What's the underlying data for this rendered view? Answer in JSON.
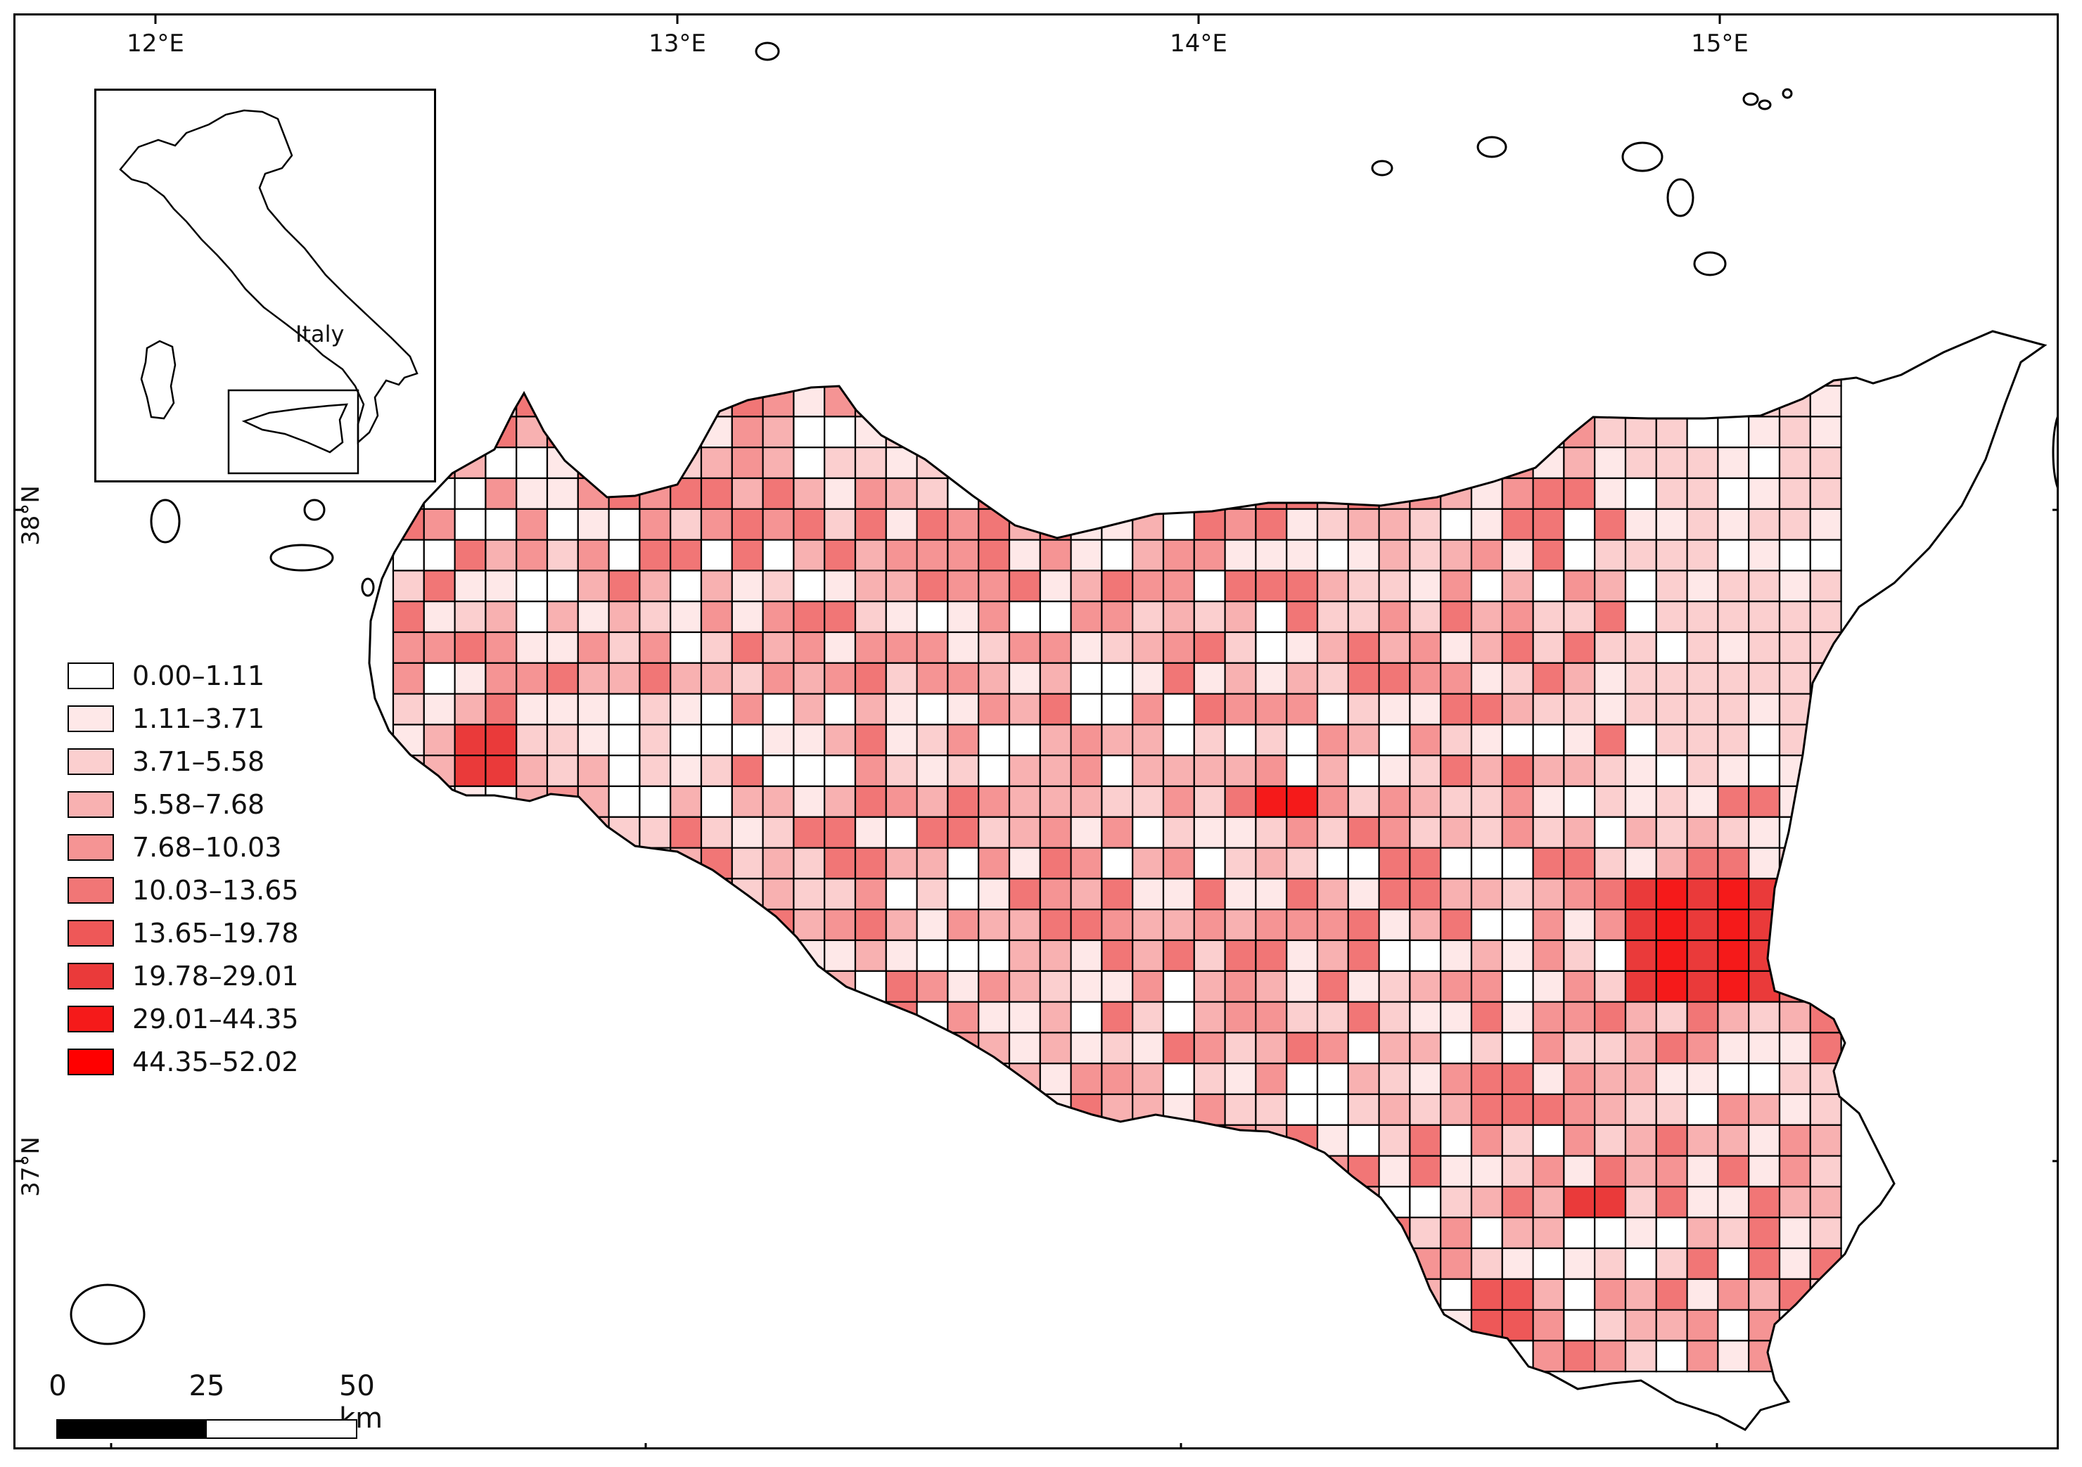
{
  "map": {
    "grid_columns": 47,
    "grid_rows": 34
  },
  "axes": {
    "longitude_labels": [
      "12°E",
      "13°E",
      "14°E",
      "15°E"
    ],
    "latitude_labels": [
      "38°N",
      "37°N"
    ]
  },
  "inset": {
    "label": "Italy"
  },
  "legend": {
    "classes": [
      {
        "label": "0.00–1.11",
        "color": "#ffffff"
      },
      {
        "label": "1.11–3.71",
        "color": "#fee8e8"
      },
      {
        "label": "3.71–5.58",
        "color": "#fbcfcf"
      },
      {
        "label": "5.58–7.68",
        "color": "#f8b1b1"
      },
      {
        "label": "7.68–10.03",
        "color": "#f59494"
      },
      {
        "label": "10.03–13.65",
        "color": "#f17676"
      },
      {
        "label": "13.65–19.78",
        "color": "#ee5858"
      },
      {
        "label": "19.78–29.01",
        "color": "#ea3a3a"
      },
      {
        "label": "29.01–44.35",
        "color": "#f51a1a"
      },
      {
        "label": "44.35–52.02",
        "color": "#ff0000"
      }
    ]
  },
  "scalebar": {
    "ticks": [
      "0",
      "25",
      "50 km"
    ]
  },
  "colors": {
    "outline": "#000000",
    "background": "#ffffff"
  }
}
